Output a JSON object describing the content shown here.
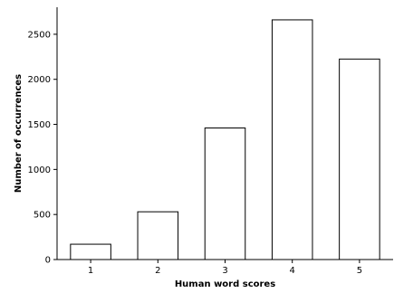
{
  "chart_data": {
    "type": "bar",
    "categories": [
      "1",
      "2",
      "3",
      "4",
      "5"
    ],
    "values": [
      170,
      530,
      1460,
      2660,
      2225
    ],
    "xlabel": "Human word scores",
    "ylabel": "Number of occurrences",
    "ylim": [
      0,
      2800
    ],
    "yticks": [
      0,
      500,
      1000,
      1500,
      2000,
      2500
    ],
    "grid": false,
    "colors": {
      "bar_fill": "#ffffff",
      "bar_edge": "#000000"
    }
  }
}
